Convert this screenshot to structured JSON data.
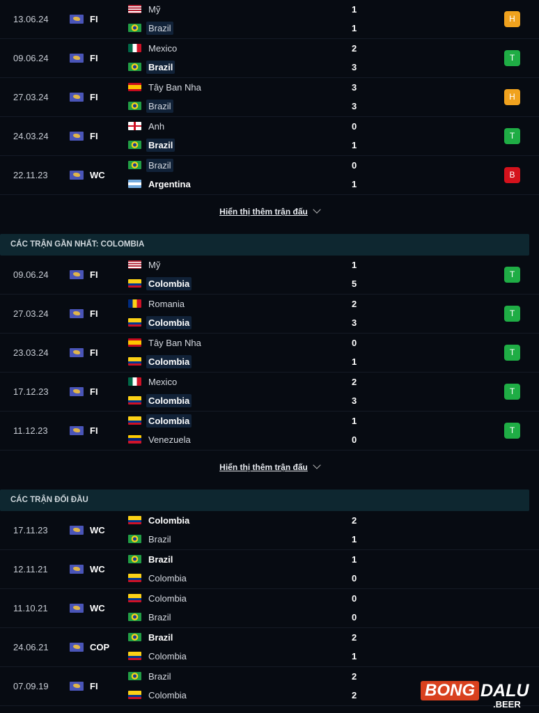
{
  "colors": {
    "H": "#f0a21e",
    "T": "#1fad45",
    "B": "#d4121c"
  },
  "sections": [
    {
      "title": "",
      "team": "Brazil",
      "more": "Hiển thị thêm trận đấu",
      "matches": [
        {
          "date": "13.06.24",
          "comp": "FI",
          "home": {
            "name": "Mỹ",
            "flag": "us",
            "score": "1"
          },
          "away": {
            "name": "Brazil",
            "flag": "br",
            "score": "1"
          },
          "result": "H"
        },
        {
          "date": "09.06.24",
          "comp": "FI",
          "home": {
            "name": "Mexico",
            "flag": "mx",
            "score": "2"
          },
          "away": {
            "name": "Brazil",
            "flag": "br",
            "score": "3"
          },
          "result": "T"
        },
        {
          "date": "27.03.24",
          "comp": "FI",
          "home": {
            "name": "Tây Ban Nha",
            "flag": "es",
            "score": "3"
          },
          "away": {
            "name": "Brazil",
            "flag": "br",
            "score": "3"
          },
          "result": "H"
        },
        {
          "date": "24.03.24",
          "comp": "FI",
          "home": {
            "name": "Anh",
            "flag": "en",
            "score": "0"
          },
          "away": {
            "name": "Brazil",
            "flag": "br",
            "score": "1"
          },
          "result": "T"
        },
        {
          "date": "22.11.23",
          "comp": "WC",
          "home": {
            "name": "Brazil",
            "flag": "br",
            "score": "0"
          },
          "away": {
            "name": "Argentina",
            "flag": "ar",
            "score": "1"
          },
          "result": "B"
        }
      ]
    },
    {
      "title": "CÁC TRẬN GẦN NHẤT: COLOMBIA",
      "team": "Colombia",
      "more": "Hiển thị thêm trận đấu",
      "matches": [
        {
          "date": "09.06.24",
          "comp": "FI",
          "home": {
            "name": "Mỹ",
            "flag": "us",
            "score": "1"
          },
          "away": {
            "name": "Colombia",
            "flag": "co",
            "score": "5"
          },
          "result": "T"
        },
        {
          "date": "27.03.24",
          "comp": "FI",
          "home": {
            "name": "Romania",
            "flag": "ro",
            "score": "2"
          },
          "away": {
            "name": "Colombia",
            "flag": "co",
            "score": "3"
          },
          "result": "T"
        },
        {
          "date": "23.03.24",
          "comp": "FI",
          "home": {
            "name": "Tây Ban Nha",
            "flag": "es",
            "score": "0"
          },
          "away": {
            "name": "Colombia",
            "flag": "co",
            "score": "1"
          },
          "result": "T"
        },
        {
          "date": "17.12.23",
          "comp": "FI",
          "home": {
            "name": "Mexico",
            "flag": "mx",
            "score": "2"
          },
          "away": {
            "name": "Colombia",
            "flag": "co",
            "score": "3"
          },
          "result": "T"
        },
        {
          "date": "11.12.23",
          "comp": "FI",
          "home": {
            "name": "Colombia",
            "flag": "co",
            "score": "1"
          },
          "away": {
            "name": "Venezuela",
            "flag": "ve",
            "score": "0"
          },
          "result": "T"
        }
      ]
    },
    {
      "title": "CÁC TRẬN ĐỐI ĐẦU",
      "team": "",
      "more": "",
      "matches": [
        {
          "date": "17.11.23",
          "comp": "WC",
          "home": {
            "name": "Colombia",
            "flag": "co",
            "score": "2"
          },
          "away": {
            "name": "Brazil",
            "flag": "br",
            "score": "1"
          },
          "result": ""
        },
        {
          "date": "12.11.21",
          "comp": "WC",
          "home": {
            "name": "Brazil",
            "flag": "br",
            "score": "1"
          },
          "away": {
            "name": "Colombia",
            "flag": "co",
            "score": "0"
          },
          "result": ""
        },
        {
          "date": "11.10.21",
          "comp": "WC",
          "home": {
            "name": "Colombia",
            "flag": "co",
            "score": "0"
          },
          "away": {
            "name": "Brazil",
            "flag": "br",
            "score": "0"
          },
          "result": ""
        },
        {
          "date": "24.06.21",
          "comp": "COP",
          "home": {
            "name": "Brazil",
            "flag": "br",
            "score": "2"
          },
          "away": {
            "name": "Colombia",
            "flag": "co",
            "score": "1"
          },
          "result": ""
        },
        {
          "date": "07.09.19",
          "comp": "FI",
          "home": {
            "name": "Brazil",
            "flag": "br",
            "score": "2"
          },
          "away": {
            "name": "Colombia",
            "flag": "co",
            "score": "2"
          },
          "result": ""
        }
      ]
    }
  ],
  "logo": {
    "text1": "BONG",
    "text2": "DALU",
    "text3": ".BEER"
  }
}
